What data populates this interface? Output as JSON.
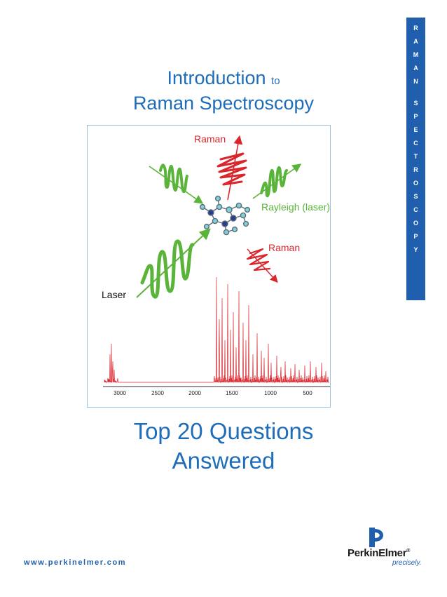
{
  "side_tab": {
    "letters": [
      "R",
      "A",
      "M",
      "A",
      "N",
      "",
      "S",
      "P",
      "E",
      "C",
      "T",
      "R",
      "O",
      "S",
      "C",
      "O",
      "P",
      "Y"
    ]
  },
  "header": {
    "title_main": "Introduction",
    "title_to": "to",
    "title_line2": "Raman Spectroscopy"
  },
  "figure": {
    "labels": {
      "raman_top": "Raman",
      "rayleigh": "Rayleigh (laser)",
      "raman_right": "Raman",
      "laser": "Laser"
    },
    "spectrum_ticks": [
      "3000",
      "2500",
      "2000",
      "1500",
      "1000",
      "500"
    ]
  },
  "subtitle": {
    "line1": "Top 20 Questions",
    "line2": "Answered"
  },
  "footer": {
    "url": "www.perkinelmer.com",
    "logo_perkin": "Perkin",
    "logo_elmer": "Elmer",
    "logo_reg": "®",
    "tagline": "precisely."
  },
  "colors": {
    "brand_blue": "#1f5fae",
    "title_blue": "#1f6db8",
    "raman_red": "#d9262d",
    "rayleigh_green": "#5ab43a"
  }
}
